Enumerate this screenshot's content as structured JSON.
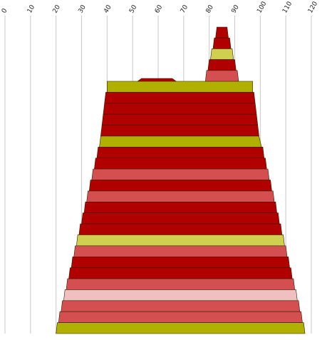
{
  "chart_data": {
    "type": "area",
    "description_of_marks": "stacked horizontal bands forming a tapered shape over a numeric x axis",
    "x_axis": {
      "ticks": [
        0,
        10,
        20,
        30,
        40,
        50,
        60,
        70,
        80,
        90,
        100,
        110,
        120
      ],
      "xlim": [
        0,
        120
      ],
      "grid": true,
      "tick_label_position": "top",
      "tick_label_rotation": -60
    },
    "legend": "none",
    "colors": {
      "dark_red": "#b00000",
      "medium_red": "#d45050",
      "light_pink": "#f0c0c0",
      "olive": "#b0b000",
      "yellow_green": "#d0d050",
      "grid": "#c8c8c8",
      "outline": "#3a1a00"
    },
    "bands": [
      {
        "layer": 0,
        "color": "olive",
        "start_left": 40.0,
        "start_right": 97.0,
        "end_left": 40.0,
        "end_right": 97.0
      },
      {
        "layer": 1,
        "color": "dark_red",
        "start_left": 39.5,
        "start_right": 97.5,
        "end_left": 39.0,
        "end_right": 98.0
      },
      {
        "layer": 2,
        "color": "dark_red",
        "start_left": 39.0,
        "start_right": 98.0,
        "end_left": 38.5,
        "end_right": 98.5
      },
      {
        "layer": 3,
        "color": "dark_red",
        "start_left": 38.5,
        "start_right": 98.5,
        "end_left": 38.0,
        "end_right": 99.0
      },
      {
        "layer": 4,
        "color": "dark_red",
        "start_left": 38.0,
        "start_right": 99.0,
        "end_left": 37.5,
        "end_right": 99.5
      },
      {
        "layer": 5,
        "color": "olive",
        "start_left": 37.5,
        "start_right": 99.5,
        "end_left": 37.0,
        "end_right": 100.5
      },
      {
        "layer": 6,
        "color": "dark_red",
        "start_left": 36.5,
        "start_right": 101.0,
        "end_left": 36.0,
        "end_right": 101.5
      },
      {
        "layer": 7,
        "color": "dark_red",
        "start_left": 35.5,
        "start_right": 102.0,
        "end_left": 35.0,
        "end_right": 102.5
      },
      {
        "layer": 8,
        "color": "medium_red",
        "start_left": 34.5,
        "start_right": 103.0,
        "end_left": 34.0,
        "end_right": 103.5
      },
      {
        "layer": 9,
        "color": "dark_red",
        "start_left": 33.5,
        "start_right": 104.0,
        "end_left": 33.0,
        "end_right": 104.5
      },
      {
        "layer": 10,
        "color": "medium_red",
        "start_left": 32.5,
        "start_right": 105.0,
        "end_left": 32.0,
        "end_right": 105.5
      },
      {
        "layer": 11,
        "color": "dark_red",
        "start_left": 31.5,
        "start_right": 106.0,
        "end_left": 31.0,
        "end_right": 106.5
      },
      {
        "layer": 12,
        "color": "dark_red",
        "start_left": 30.5,
        "start_right": 107.0,
        "end_left": 30.0,
        "end_right": 107.5
      },
      {
        "layer": 13,
        "color": "dark_red",
        "start_left": 29.5,
        "start_right": 108.0,
        "end_left": 29.0,
        "end_right": 108.5
      },
      {
        "layer": 14,
        "color": "yellow_green",
        "start_left": 28.5,
        "start_right": 109.0,
        "end_left": 28.0,
        "end_right": 109.5
      },
      {
        "layer": 15,
        "color": "medium_red",
        "start_left": 27.5,
        "start_right": 110.0,
        "end_left": 27.0,
        "end_right": 110.5
      },
      {
        "layer": 16,
        "color": "dark_red",
        "start_left": 26.5,
        "start_right": 111.0,
        "end_left": 26.0,
        "end_right": 111.5
      },
      {
        "layer": 17,
        "color": "dark_red",
        "start_left": 25.5,
        "start_right": 112.0,
        "end_left": 25.0,
        "end_right": 112.5
      },
      {
        "layer": 18,
        "color": "medium_red",
        "start_left": 24.5,
        "start_right": 113.0,
        "end_left": 24.0,
        "end_right": 113.5
      },
      {
        "layer": 19,
        "color": "light_pink",
        "start_left": 23.5,
        "start_right": 114.0,
        "end_left": 23.0,
        "end_right": 114.5
      },
      {
        "layer": 20,
        "color": "medium_red",
        "start_left": 22.5,
        "start_right": 115.0,
        "end_left": 22.0,
        "end_right": 115.5
      },
      {
        "layer": 21,
        "color": "medium_red",
        "start_left": 21.5,
        "start_right": 116.0,
        "end_left": 21.0,
        "end_right": 116.5
      },
      {
        "layer": 22,
        "color": "olive",
        "start_left": 20.5,
        "start_right": 117.0,
        "end_left": 20.0,
        "end_right": 117.5
      }
    ],
    "peak_bands": [
      {
        "layer": 0,
        "color": "dark_red",
        "start_left": 83.0,
        "start_right": 87.0,
        "end_left": 82.5,
        "end_right": 87.5
      },
      {
        "layer": 1,
        "color": "dark_red",
        "start_left": 82.0,
        "start_right": 88.0,
        "end_left": 81.5,
        "end_right": 88.5
      },
      {
        "layer": 2,
        "color": "yellow_green",
        "start_left": 81.0,
        "start_right": 89.0,
        "end_left": 80.5,
        "end_right": 89.5
      },
      {
        "layer": 3,
        "color": "dark_red",
        "start_left": 80.0,
        "start_right": 90.0,
        "end_left": 79.5,
        "end_right": 90.5
      },
      {
        "layer": 4,
        "color": "medium_red",
        "start_left": 79.0,
        "start_right": 91.0,
        "end_left": 78.5,
        "end_right": 91.5
      }
    ],
    "top_cap": {
      "color": "dark_red",
      "start_left": 52.0,
      "start_right": 67.0,
      "end_left": 52.0,
      "end_right": 67.0
    }
  }
}
